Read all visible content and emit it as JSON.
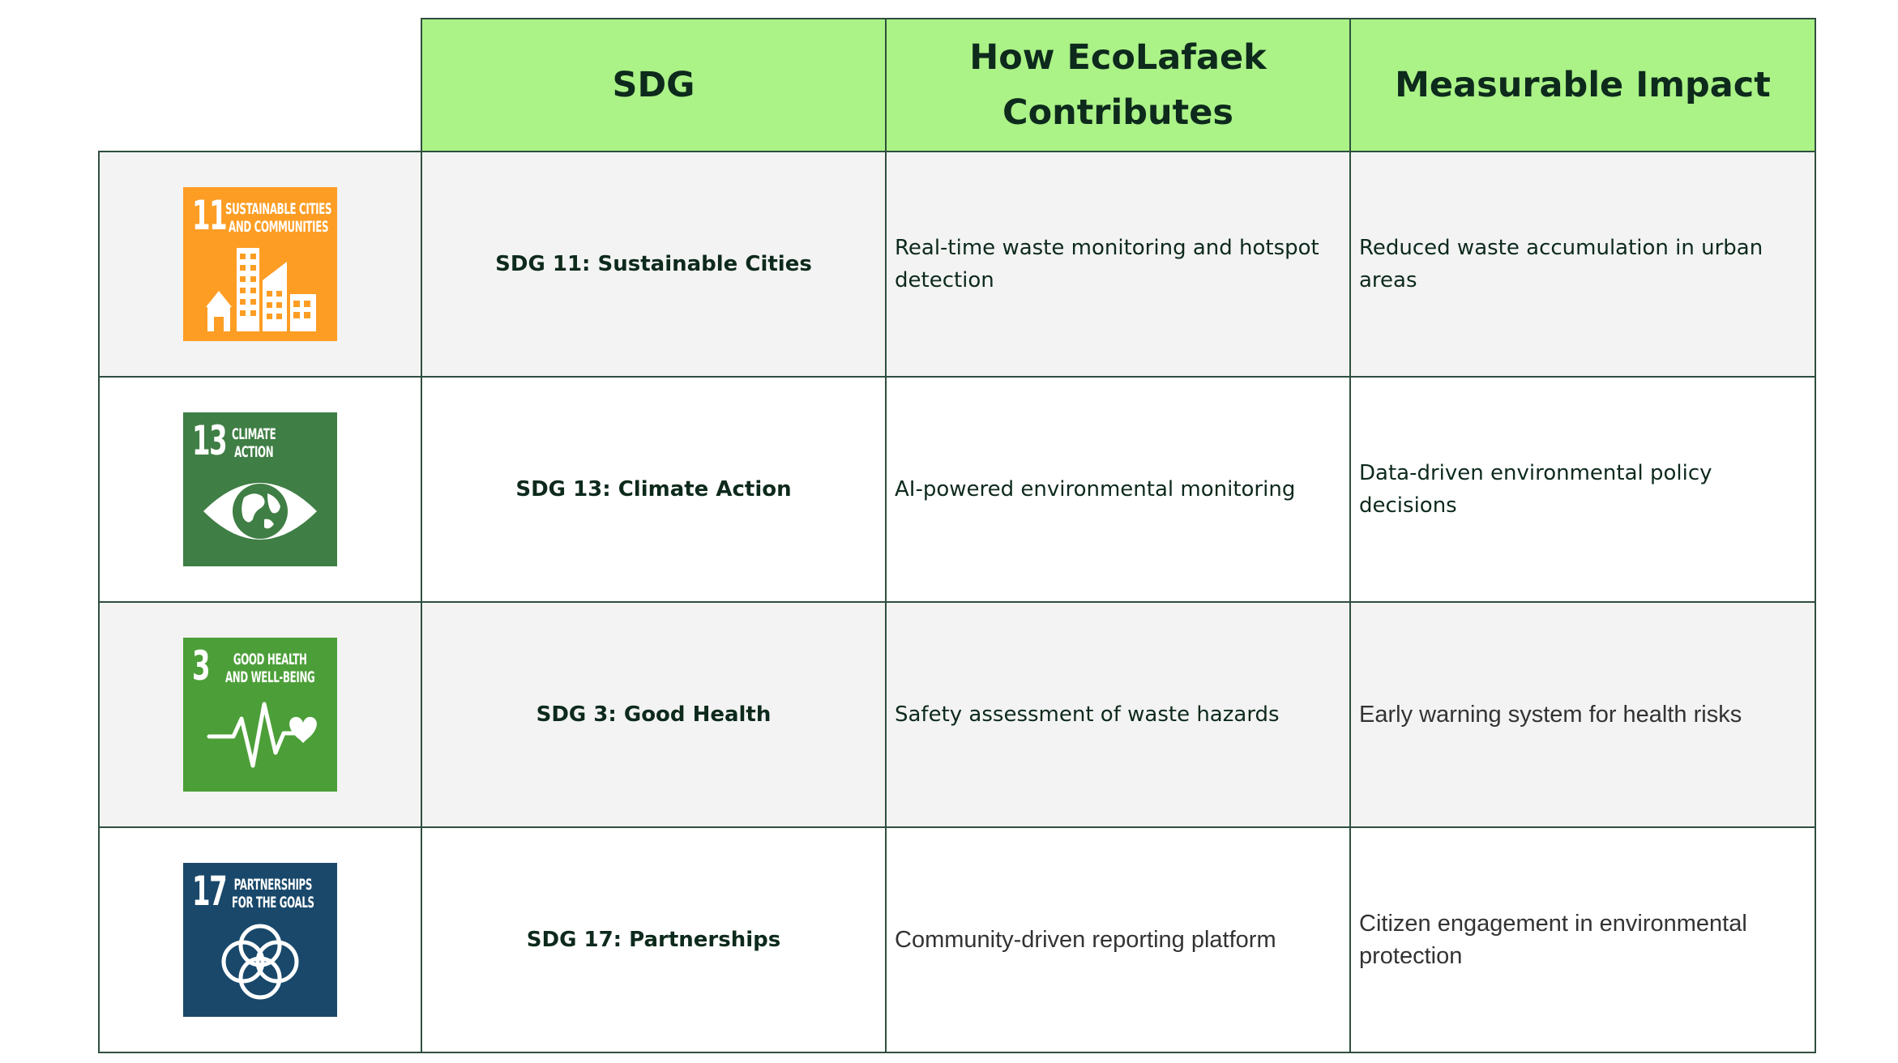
{
  "table": {
    "headers": {
      "sdg": "SDG",
      "contribution": "How EcoLafaek Contributes",
      "impact": "Measurable Impact"
    },
    "rows": [
      {
        "icon": {
          "number": "11",
          "title": "SUSTAINABLE CITIES\nAND COMMUNITIES",
          "name": "sdg-11-city-buildings-icon",
          "color": "#fd9d24"
        },
        "sdg": "SDG 11: Sustainable Cities",
        "contribution": "Real-time waste monitoring and hotspot detection",
        "impact": "Reduced waste accumulation in urban areas"
      },
      {
        "icon": {
          "number": "13",
          "title": "CLIMATE\nACTION",
          "name": "sdg-13-eye-globe-icon",
          "color": "#3f7e44"
        },
        "sdg": "SDG 13: Climate Action",
        "contribution": "AI-powered environmental monitoring",
        "impact": "Data-driven environmental policy decisions"
      },
      {
        "icon": {
          "number": "3",
          "title": "GOOD HEALTH\nAND WELL-BEING",
          "name": "sdg-3-heartbeat-icon",
          "color": "#4c9f38"
        },
        "sdg": "SDG 3: Good Health",
        "contribution": "Safety assessment of waste hazards",
        "impact": "Early warning system for health risks"
      },
      {
        "icon": {
          "number": "17",
          "title": "PARTNERSHIPS\nFOR THE GOALS",
          "name": "sdg-17-rings-icon",
          "color": "#19486a"
        },
        "sdg": "SDG 17: Partnerships",
        "contribution": "Community-driven reporting platform",
        "impact": "Citizen engagement in environmental protection"
      }
    ]
  }
}
